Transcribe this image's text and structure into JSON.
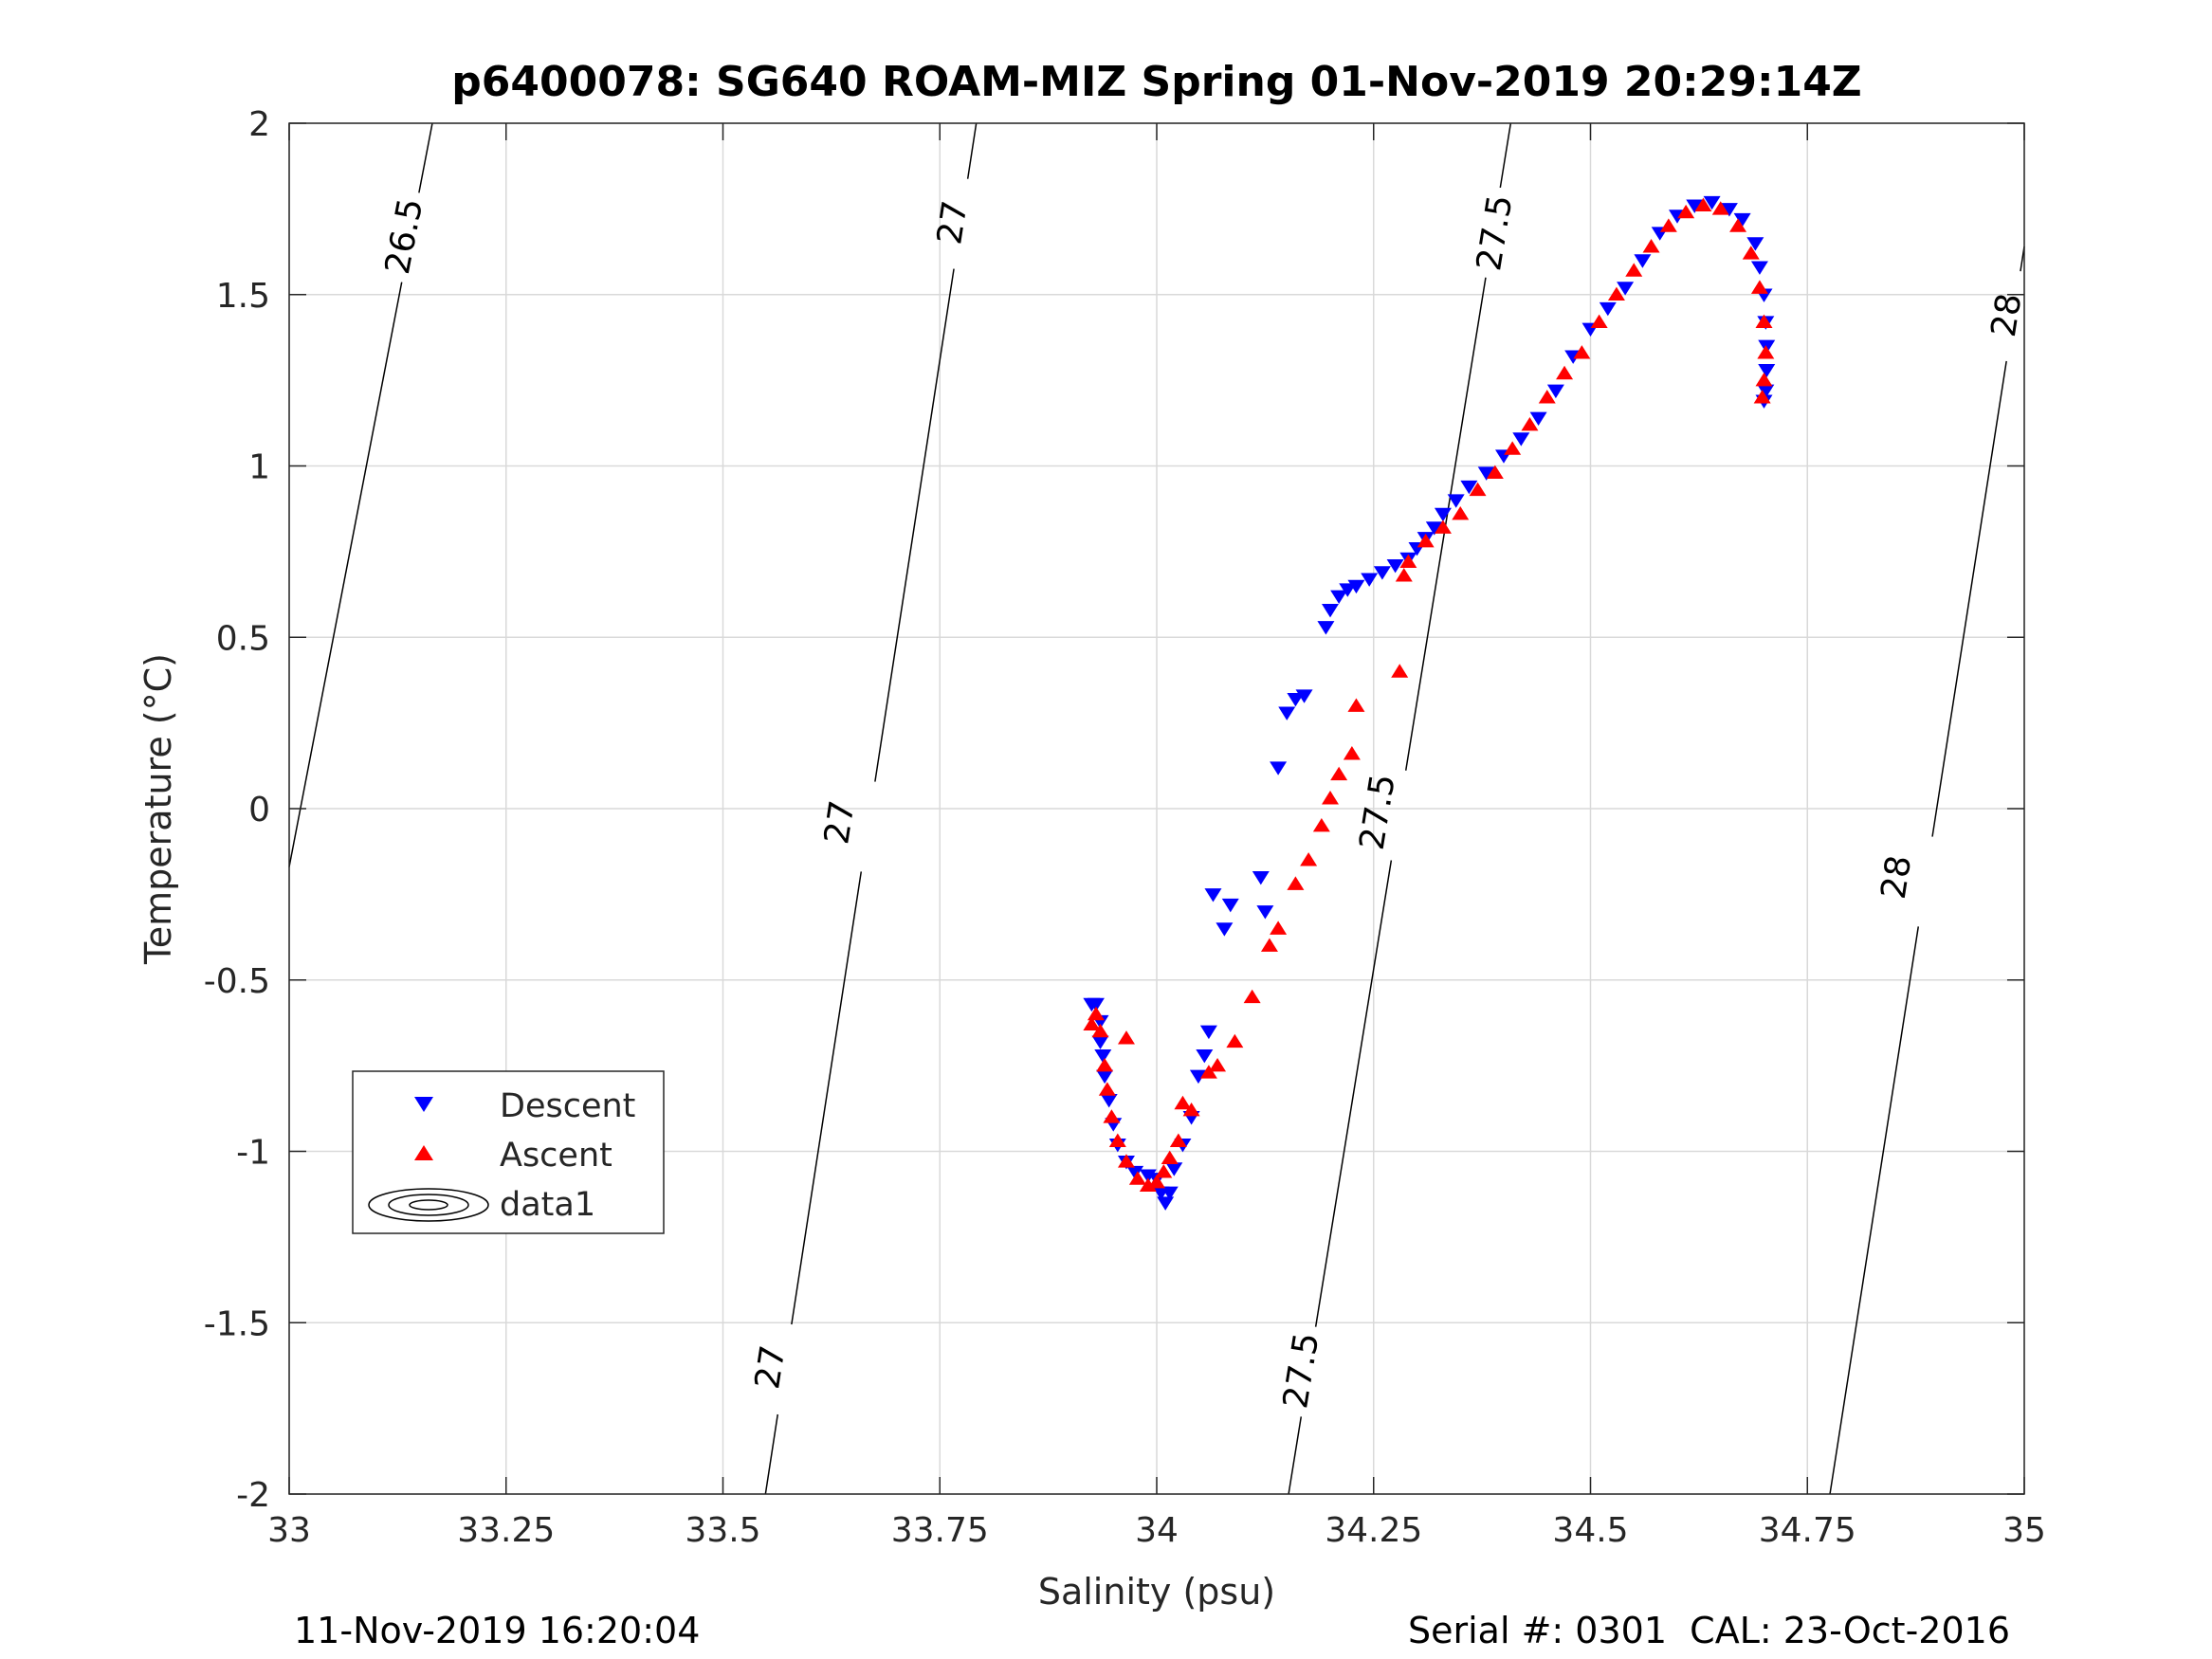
{
  "chart_data": {
    "type": "scatter",
    "title": "p6400078: SG640 ROAM-MIZ Spring 01-Nov-2019 20:29:14Z",
    "xlabel": "Salinity (psu)",
    "ylabel": "Temperature (°C)",
    "xlim": [
      33,
      35
    ],
    "ylim": [
      -2,
      2
    ],
    "xticks": [
      33,
      33.25,
      33.5,
      33.75,
      34,
      34.25,
      34.5,
      34.75,
      35
    ],
    "xtick_labels": [
      "33",
      "33.25",
      "33.5",
      "33.75",
      "34",
      "34.25",
      "34.5",
      "34.75",
      "35"
    ],
    "yticks": [
      -2,
      -1.5,
      -1,
      -0.5,
      0,
      0.5,
      1,
      1.5,
      2
    ],
    "ytick_labels": [
      "-2",
      "-1.5",
      "-1",
      "-0.5",
      "0",
      "0.5",
      "1",
      "1.5",
      "2"
    ],
    "grid": true,
    "legend_position": "lower-left",
    "series": [
      {
        "name": "Descent",
        "marker": "triangle-down",
        "color": "#0000ff",
        "points": [
          [
            33.925,
            -0.57
          ],
          [
            33.93,
            -0.57
          ],
          [
            33.935,
            -0.62
          ],
          [
            33.935,
            -0.68
          ],
          [
            33.938,
            -0.72
          ],
          [
            33.94,
            -0.78
          ],
          [
            33.945,
            -0.85
          ],
          [
            33.95,
            -0.92
          ],
          [
            33.955,
            -0.98
          ],
          [
            33.965,
            -1.03
          ],
          [
            33.975,
            -1.06
          ],
          [
            33.99,
            -1.07
          ],
          [
            34.0,
            -1.08
          ],
          [
            34.005,
            -1.12
          ],
          [
            34.01,
            -1.15
          ],
          [
            34.015,
            -1.12
          ],
          [
            34.02,
            -1.05
          ],
          [
            34.03,
            -0.98
          ],
          [
            34.04,
            -0.9
          ],
          [
            34.048,
            -0.78
          ],
          [
            34.055,
            -0.72
          ],
          [
            34.06,
            -0.65
          ],
          [
            34.078,
            -0.35
          ],
          [
            34.065,
            -0.25
          ],
          [
            34.085,
            -0.28
          ],
          [
            34.12,
            -0.2
          ],
          [
            34.125,
            -0.3
          ],
          [
            34.14,
            0.12
          ],
          [
            34.15,
            0.28
          ],
          [
            34.16,
            0.32
          ],
          [
            34.17,
            0.33
          ],
          [
            34.195,
            0.53
          ],
          [
            34.2,
            0.58
          ],
          [
            34.21,
            0.62
          ],
          [
            34.22,
            0.64
          ],
          [
            34.23,
            0.65
          ],
          [
            34.245,
            0.67
          ],
          [
            34.26,
            0.69
          ],
          [
            34.275,
            0.71
          ],
          [
            34.29,
            0.73
          ],
          [
            34.3,
            0.76
          ],
          [
            34.31,
            0.79
          ],
          [
            34.32,
            0.82
          ],
          [
            34.33,
            0.86
          ],
          [
            34.345,
            0.9
          ],
          [
            34.36,
            0.94
          ],
          [
            34.38,
            0.98
          ],
          [
            34.4,
            1.03
          ],
          [
            34.42,
            1.08
          ],
          [
            34.44,
            1.14
          ],
          [
            34.46,
            1.22
          ],
          [
            34.48,
            1.32
          ],
          [
            34.5,
            1.4
          ],
          [
            34.52,
            1.46
          ],
          [
            34.54,
            1.52
          ],
          [
            34.56,
            1.6
          ],
          [
            34.58,
            1.68
          ],
          [
            34.6,
            1.73
          ],
          [
            34.62,
            1.76
          ],
          [
            34.64,
            1.77
          ],
          [
            34.66,
            1.75
          ],
          [
            34.675,
            1.72
          ],
          [
            34.69,
            1.65
          ],
          [
            34.695,
            1.58
          ],
          [
            34.7,
            1.5
          ],
          [
            34.702,
            1.42
          ],
          [
            34.703,
            1.35
          ],
          [
            34.703,
            1.28
          ],
          [
            34.702,
            1.22
          ],
          [
            34.7,
            1.19
          ]
        ]
      },
      {
        "name": "Ascent",
        "marker": "triangle-up",
        "color": "#ff0000",
        "points": [
          [
            33.925,
            -0.63
          ],
          [
            33.93,
            -0.6
          ],
          [
            33.935,
            -0.65
          ],
          [
            33.94,
            -0.75
          ],
          [
            33.943,
            -0.82
          ],
          [
            33.948,
            -0.9
          ],
          [
            33.955,
            -0.97
          ],
          [
            33.965,
            -1.03
          ],
          [
            33.978,
            -1.08
          ],
          [
            33.99,
            -1.1
          ],
          [
            34.0,
            -1.09
          ],
          [
            34.008,
            -1.06
          ],
          [
            34.015,
            -1.02
          ],
          [
            34.025,
            -0.97
          ],
          [
            34.03,
            -0.86
          ],
          [
            34.04,
            -0.88
          ],
          [
            33.965,
            -0.67
          ],
          [
            34.06,
            -0.77
          ],
          [
            34.07,
            -0.75
          ],
          [
            34.09,
            -0.68
          ],
          [
            34.11,
            -0.55
          ],
          [
            34.13,
            -0.4
          ],
          [
            34.14,
            -0.35
          ],
          [
            34.16,
            -0.22
          ],
          [
            34.175,
            -0.15
          ],
          [
            34.19,
            -0.05
          ],
          [
            34.2,
            0.03
          ],
          [
            34.21,
            0.1
          ],
          [
            34.225,
            0.16
          ],
          [
            34.23,
            0.3
          ],
          [
            34.28,
            0.4
          ],
          [
            34.285,
            0.68
          ],
          [
            34.29,
            0.72
          ],
          [
            34.31,
            0.78
          ],
          [
            34.33,
            0.82
          ],
          [
            34.35,
            0.86
          ],
          [
            34.37,
            0.93
          ],
          [
            34.39,
            0.98
          ],
          [
            34.41,
            1.05
          ],
          [
            34.43,
            1.12
          ],
          [
            34.45,
            1.2
          ],
          [
            34.47,
            1.27
          ],
          [
            34.49,
            1.33
          ],
          [
            34.51,
            1.42
          ],
          [
            34.53,
            1.5
          ],
          [
            34.55,
            1.57
          ],
          [
            34.57,
            1.64
          ],
          [
            34.59,
            1.7
          ],
          [
            34.61,
            1.74
          ],
          [
            34.63,
            1.76
          ],
          [
            34.65,
            1.75
          ],
          [
            34.67,
            1.7
          ],
          [
            34.685,
            1.62
          ],
          [
            34.695,
            1.52
          ],
          [
            34.7,
            1.42
          ],
          [
            34.702,
            1.33
          ],
          [
            34.7,
            1.25
          ],
          [
            34.698,
            1.2
          ]
        ]
      }
    ],
    "contours": [
      {
        "label": "26.5",
        "line": [
          [
            33.0,
            -0.17
          ],
          [
            33.165,
            2.0
          ]
        ],
        "labels_at": [
          [
            33.133,
            1.67
          ]
        ]
      },
      {
        "label": "27",
        "line": [
          [
            33.549,
            -2.0
          ],
          [
            33.792,
            2.0
          ]
        ],
        "labels_at": [
          [
            33.555,
            -1.63
          ],
          [
            33.635,
            -0.04
          ],
          [
            33.765,
            1.71
          ]
        ]
      },
      {
        "label": "27.5",
        "line": [
          [
            34.152,
            -2.0
          ],
          [
            34.408,
            2.0
          ]
        ],
        "labels_at": [
          [
            34.167,
            -1.64
          ],
          [
            34.255,
            -0.01
          ],
          [
            34.39,
            1.68
          ]
        ]
      },
      {
        "label": "28",
        "line": [
          [
            34.776,
            -2.0
          ],
          [
            35.0,
            1.64
          ]
        ],
        "labels_at": [
          [
            34.853,
            -0.2
          ],
          [
            34.98,
            1.44
          ]
        ]
      }
    ],
    "legend_entries": [
      "Descent",
      "Ascent",
      "data1"
    ]
  },
  "footer": {
    "left_text": "11-Nov-2019 16:20:04",
    "right_text": "Serial #: 0301  CAL: 23-Oct-2016"
  }
}
